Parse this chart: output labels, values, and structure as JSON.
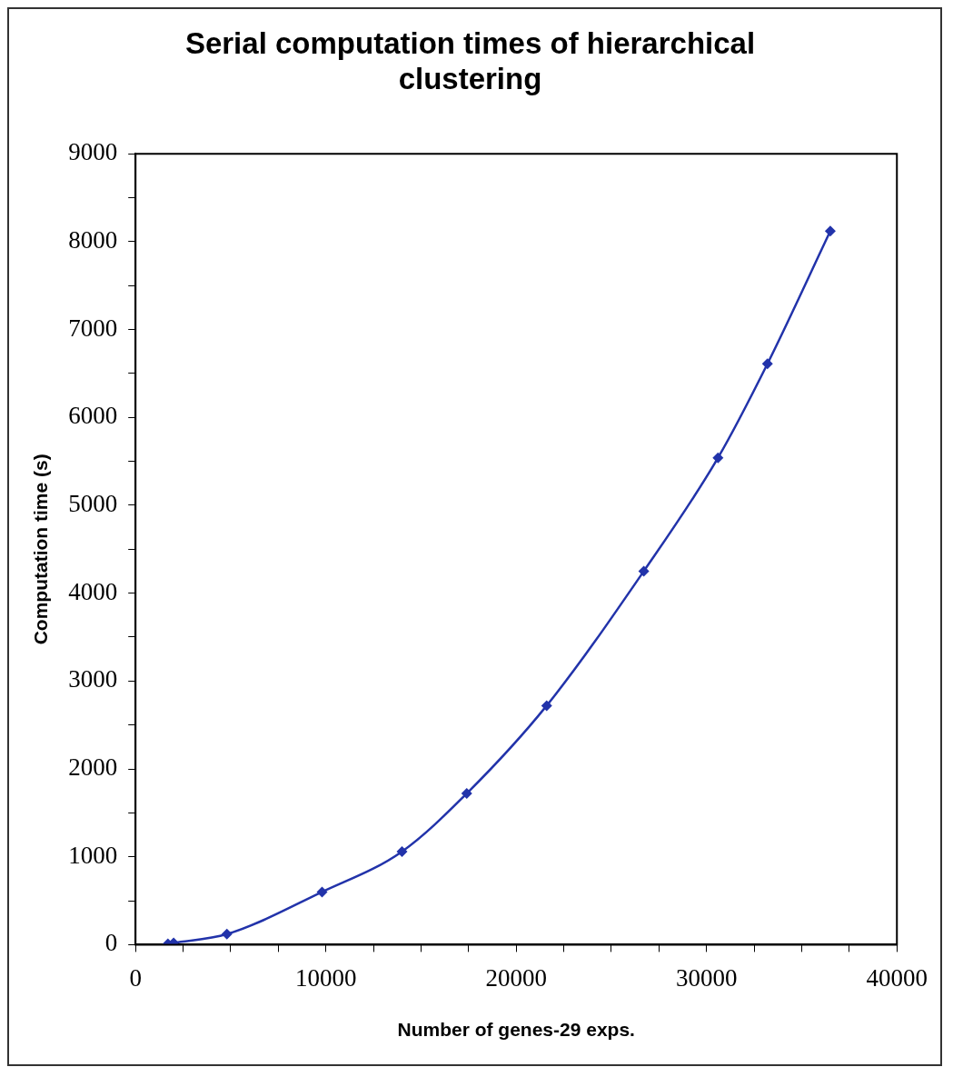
{
  "chart_data": {
    "type": "line",
    "title": "Serial computation times of hierarchical clustering",
    "xlabel": "Number of genes-29 exps.",
    "ylabel": "Computation time (s)",
    "x": [
      1700,
      2000,
      4800,
      9800,
      14000,
      17400,
      21600,
      26700,
      30600,
      33200,
      36500
    ],
    "series": [
      {
        "color": "#2233aa",
        "values": [
          10,
          20,
          120,
          600,
          1060,
          1720,
          2720,
          4250,
          5540,
          6610,
          8120
        ]
      }
    ],
    "xlim": [
      0,
      40000
    ],
    "xticks": [
      0,
      {
        "value": 2500,
        "label": null
      },
      {
        "value": 5000,
        "label": null
      },
      {
        "value": 7500,
        "label": null
      },
      10000,
      {
        "value": 12500,
        "label": null
      },
      {
        "value": 15000,
        "label": null
      },
      {
        "value": 17500,
        "label": null
      },
      20000,
      {
        "value": 22500,
        "label": null
      },
      {
        "value": 25000,
        "label": null
      },
      {
        "value": 27500,
        "label": null
      },
      30000,
      {
        "value": 32500,
        "label": null
      },
      {
        "value": 35000,
        "label": null
      },
      {
        "value": 37500,
        "label": null
      },
      40000
    ],
    "ylim": [
      0,
      9000
    ],
    "yticks": [
      0,
      {
        "value": 500,
        "label": null
      },
      1000,
      {
        "value": 1500,
        "label": null
      },
      2000,
      {
        "value": 2500,
        "label": null
      },
      3000,
      {
        "value": 3500,
        "label": null
      },
      4000,
      {
        "value": 4500,
        "label": null
      },
      5000,
      {
        "value": 5500,
        "label": null
      },
      6000,
      {
        "value": 6500,
        "label": null
      },
      7000,
      {
        "value": 7500,
        "label": null
      },
      8000,
      {
        "value": 8500,
        "label": null
      },
      9000
    ],
    "grid": false,
    "legend": false,
    "marker": "diamond",
    "line_style": "solid"
  }
}
